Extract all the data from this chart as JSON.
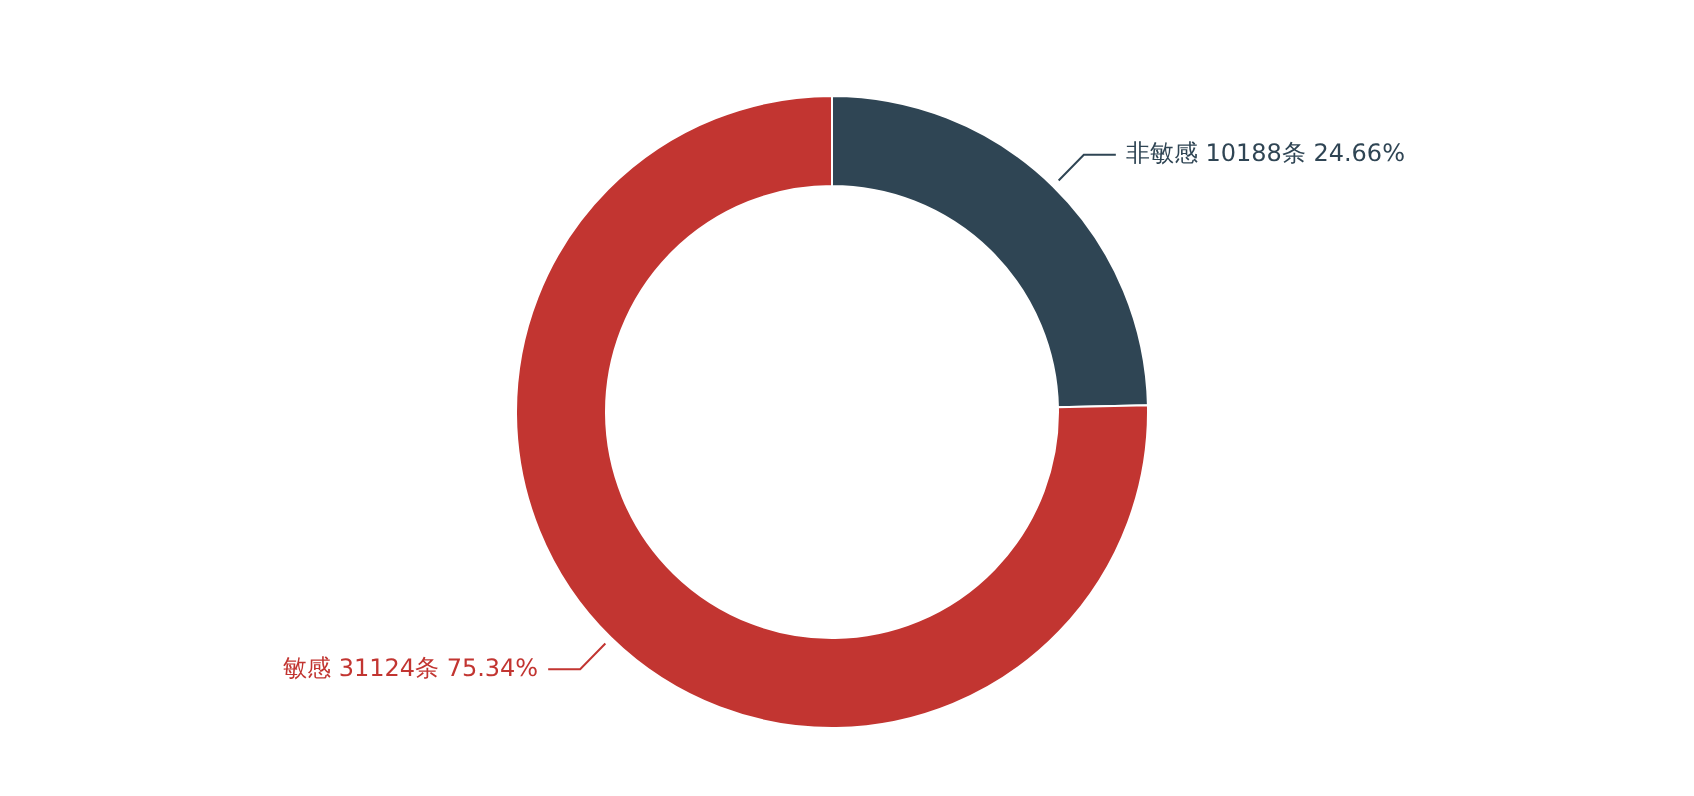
{
  "chart_data": {
    "type": "donut",
    "categories": [
      "非敏感",
      "敏感"
    ],
    "values": [
      10188,
      31124
    ],
    "colors": [
      "#2f4554",
      "#c23531"
    ],
    "value_labels": [
      "10188条  24.66%",
      "31124条  75.34%"
    ]
  }
}
